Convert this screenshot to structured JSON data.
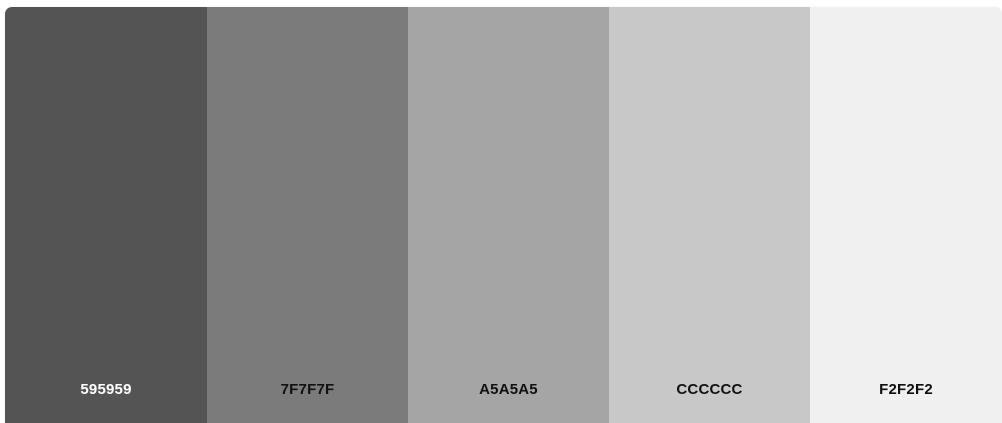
{
  "palette": {
    "colors": [
      {
        "hex": "595959",
        "background": "#545454",
        "text_color": "#ffffff"
      },
      {
        "hex": "7F7F7F",
        "background": "#7b7b7b",
        "text_color": "#111111"
      },
      {
        "hex": "A5A5A5",
        "background": "#a5a5a5",
        "text_color": "#111111"
      },
      {
        "hex": "CCCCCC",
        "background": "#c8c8c8",
        "text_color": "#111111"
      },
      {
        "hex": "F2F2F2",
        "background": "#f0f0f0",
        "text_color": "#111111"
      }
    ]
  }
}
